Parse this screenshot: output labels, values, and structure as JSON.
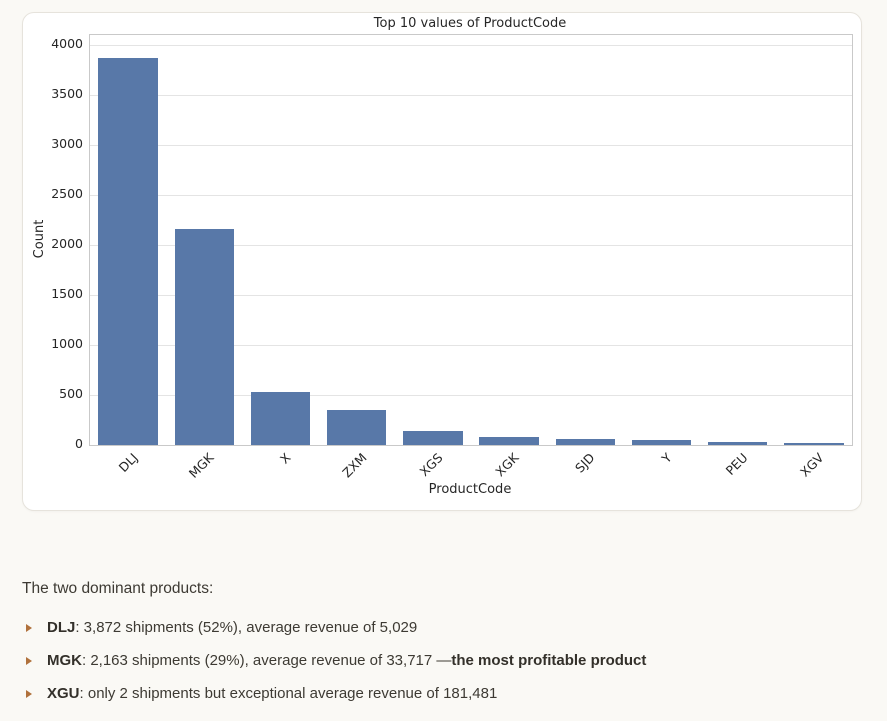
{
  "colors": {
    "page_bg": "#faf9f5",
    "card_bg": "#ffffff",
    "card_border": "#e6e3dc",
    "bar": "#5878a8",
    "grid": "#e4e4e4",
    "spine": "#c9c9c9",
    "chart_text": "#262626",
    "body_text": "#3d3a33",
    "bullet_marker": "#b0713c"
  },
  "chart_data": {
    "type": "bar",
    "title": "Top 10 values of ProductCode",
    "xlabel": "ProductCode",
    "ylabel": "Count",
    "categories": [
      "DLJ",
      "MGK",
      "X",
      "ZXM",
      "XGS",
      "XGK",
      "SJD",
      "Y",
      "PEU",
      "XGV"
    ],
    "values": [
      3872,
      2163,
      530,
      350,
      140,
      85,
      60,
      48,
      32,
      22
    ],
    "yticks": [
      0,
      500,
      1000,
      1500,
      2000,
      2500,
      3000,
      3500,
      4000
    ],
    "ylim": [
      0,
      4100
    ],
    "grid": true,
    "legend": false,
    "tick_rotation": 45,
    "bar_color": "#5878a8"
  },
  "notes": {
    "intro": "The two dominant products:",
    "bullets": [
      {
        "segments": [
          {
            "text": "DLJ",
            "bold": true
          },
          {
            "text": ": 3,872 shipments (52%), average revenue of 5,029",
            "bold": false
          }
        ]
      },
      {
        "segments": [
          {
            "text": "MGK",
            "bold": true
          },
          {
            "text": ": 2,163 shipments (29%), average revenue of 33,717 —",
            "bold": false
          },
          {
            "text": "the most profitable product",
            "bold": true
          }
        ]
      },
      {
        "segments": [
          {
            "text": "XGU",
            "bold": true
          },
          {
            "text": ": only 2 shipments but exceptional average revenue of 181,481",
            "bold": false
          }
        ]
      }
    ]
  }
}
